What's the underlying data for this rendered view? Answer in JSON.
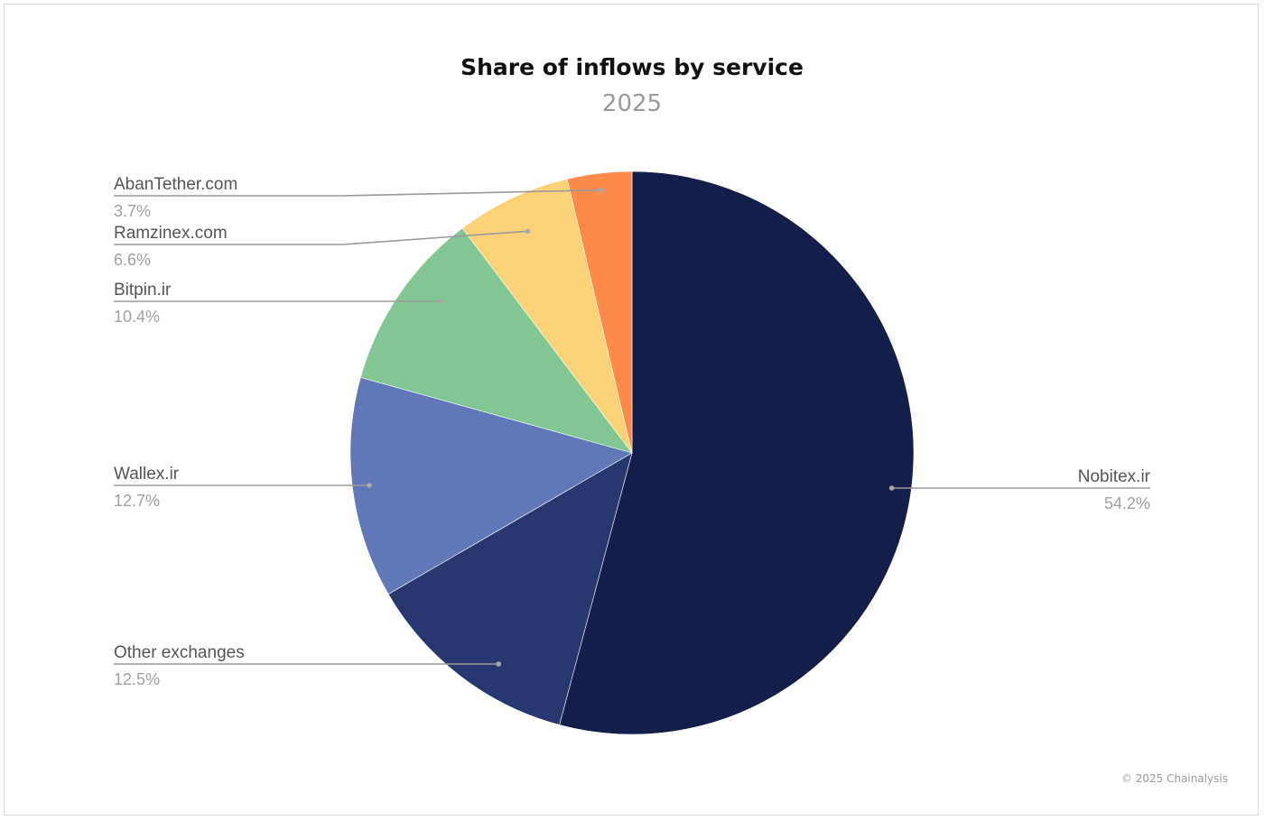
{
  "chart_data": {
    "type": "pie",
    "title": "Share of inflows by service",
    "subtitle": "2025",
    "slices": [
      {
        "label": "Nobitex.ir",
        "value": 54.2,
        "value_label": "54.2%",
        "color": "#131f4a"
      },
      {
        "label": "Other exchanges",
        "value": 12.5,
        "value_label": "12.5%",
        "color": "#283770"
      },
      {
        "label": "Wallex.ir",
        "value": 12.7,
        "value_label": "12.7%",
        "color": "#6178b8"
      },
      {
        "label": "Bitpin.ir",
        "value": 10.4,
        "value_label": "10.4%",
        "color": "#82c693"
      },
      {
        "label": "Ramzinex.com",
        "value": 6.6,
        "value_label": "6.6%",
        "color": "#fbd277"
      },
      {
        "label": "AbanTether.com",
        "value": 3.7,
        "value_label": "3.7%",
        "color": "#fd8a4b"
      }
    ],
    "start_angle": "12 o'clock",
    "direction": "clockwise",
    "legend": "none"
  },
  "footer": {
    "copyright": "© 2025 Chainalysis"
  }
}
